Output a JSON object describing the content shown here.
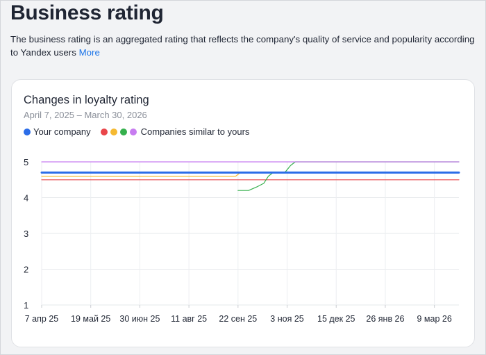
{
  "page": {
    "title": "Business rating",
    "description": "The business rating is an aggregated rating that reflects the company's quality of service and popularity according to Yandex users",
    "more_link": "More"
  },
  "card": {
    "title": "Changes in loyalty rating",
    "date_range": "April 7, 2025 – March 30, 2026",
    "legend": {
      "your_company": "Your company",
      "similar": "Companies similar to yours"
    }
  },
  "colors": {
    "your_company": "#2b6de8",
    "similar": [
      "#e9464a",
      "#f5b932",
      "#35b04c",
      "#c77cf0"
    ]
  },
  "chart_data": {
    "type": "line",
    "x_tick_labels": [
      "7 апр 25",
      "19 май 25",
      "30 июн 25",
      "11 авг 25",
      "22 сен 25",
      "3 ноя 25",
      "15 дек 25",
      "26 янв 26",
      "9 мар 26"
    ],
    "x_range": [
      "2025-04-07",
      "2026-03-30"
    ],
    "ylim": [
      1,
      5
    ],
    "y_ticks": [
      1,
      2,
      3,
      4,
      5
    ],
    "grid": true,
    "legend_position": "top-left",
    "series": [
      {
        "name": "Your company",
        "color": "#2b6de8",
        "points": [
          [
            "2025-04-07",
            4.7
          ],
          [
            "2026-03-30",
            4.7
          ]
        ]
      },
      {
        "color": "#e9464a",
        "points": [
          [
            "2025-04-07",
            4.5
          ],
          [
            "2026-03-30",
            4.5
          ]
        ]
      },
      {
        "color": "#f5b932",
        "points": [
          [
            "2025-04-07",
            4.6
          ],
          [
            "2025-09-20",
            4.6
          ],
          [
            "2025-09-24",
            4.7
          ]
        ]
      },
      {
        "color": "#35b04c",
        "points": [
          [
            "2025-09-22",
            4.2
          ],
          [
            "2025-10-01",
            4.2
          ],
          [
            "2025-10-08",
            4.3
          ],
          [
            "2025-10-14",
            4.4
          ],
          [
            "2025-10-18",
            4.6
          ],
          [
            "2025-10-22",
            4.7
          ],
          [
            "2025-11-01",
            4.7
          ],
          [
            "2025-11-06",
            4.9
          ],
          [
            "2025-11-10",
            5.0
          ],
          [
            "2026-03-30",
            5.0
          ]
        ]
      },
      {
        "color": "#c77cf0",
        "points": [
          [
            "2025-04-07",
            5.0
          ],
          [
            "2026-03-30",
            5.0
          ]
        ]
      }
    ]
  }
}
